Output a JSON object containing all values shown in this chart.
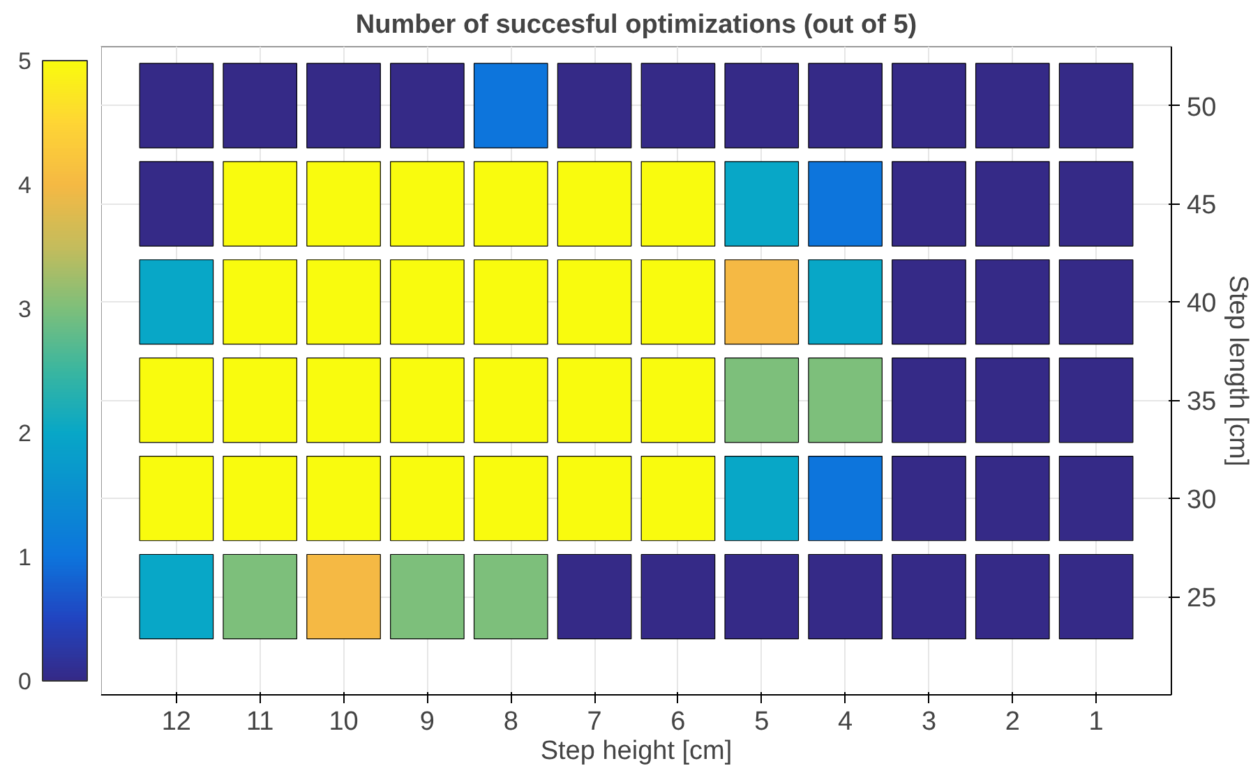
{
  "chart_data": {
    "type": "heatmap",
    "title": "Number of succesful optimizations (out of 5)",
    "xlabel": "Step height [cm]",
    "ylabel": "Step length [cm]",
    "categories": [
      "12",
      "11",
      "10",
      "9",
      "8",
      "7",
      "6",
      "5",
      "4",
      "3",
      "2",
      "1"
    ],
    "y_categories": [
      "50",
      "45",
      "40",
      "35",
      "30",
      "25"
    ],
    "cells": [
      [
        0,
        0,
        0,
        0,
        1,
        0,
        0,
        0,
        0,
        0,
        0,
        0
      ],
      [
        0,
        5,
        5,
        5,
        5,
        5,
        5,
        2,
        1,
        0,
        0,
        0
      ],
      [
        2,
        5,
        5,
        5,
        5,
        5,
        5,
        4,
        2,
        0,
        0,
        0
      ],
      [
        5,
        5,
        5,
        5,
        5,
        5,
        5,
        3,
        3,
        0,
        0,
        0
      ],
      [
        5,
        5,
        5,
        5,
        5,
        5,
        5,
        2,
        1,
        0,
        0,
        0
      ],
      [
        2,
        3,
        4,
        3,
        3,
        0,
        0,
        0,
        0,
        0,
        0,
        0
      ]
    ],
    "clim": [
      0,
      5
    ],
    "cticks": [
      0,
      1,
      2,
      3,
      4,
      5
    ],
    "grid": true
  }
}
